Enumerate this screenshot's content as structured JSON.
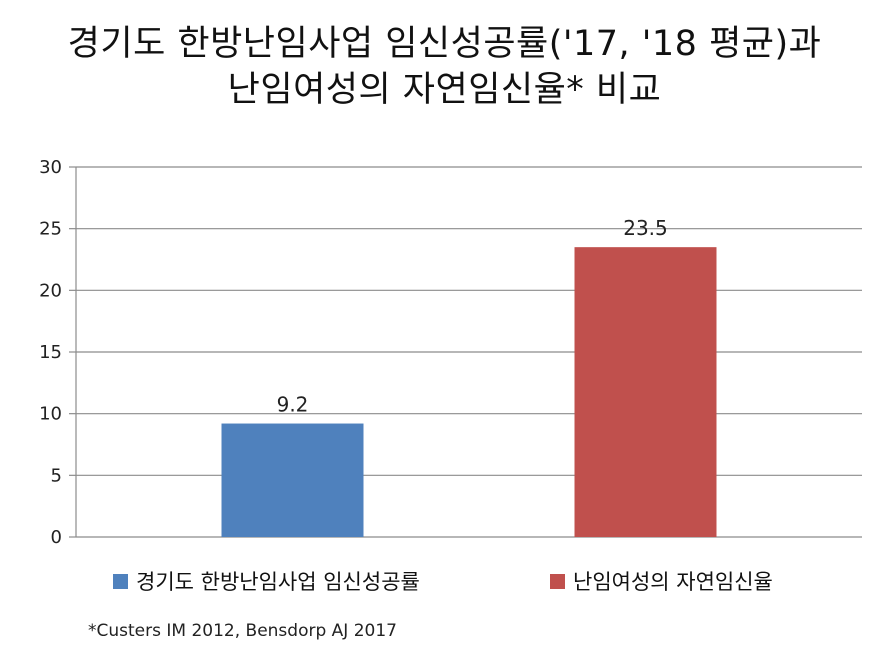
{
  "title": {
    "line1": "경기도 한방난임사업 임신성공률('17, '18 평균)과",
    "line2": "난임여성의 자연임신율* 비교"
  },
  "chart_data": {
    "type": "bar",
    "categories": [
      "경기도 한방난임사업 임신성공률",
      "난임여성의 자연임신율"
    ],
    "values": [
      9.2,
      23.5
    ],
    "data_labels": [
      "9.2",
      "23.5"
    ],
    "colors": [
      "#4F81BD",
      "#C0504D"
    ],
    "ylim": [
      0,
      30
    ],
    "yticks": [
      0,
      5,
      10,
      15,
      20,
      25,
      30
    ],
    "grid": true,
    "legend_placement": "bottom"
  },
  "legend": {
    "items": [
      {
        "label": "경기도 한방난임사업 임신성공률",
        "color": "#4F81BD"
      },
      {
        "label": "난임여성의 자연임신율",
        "color": "#C0504D"
      }
    ]
  },
  "footnote": "*Custers IM 2012, Bensdorp AJ 2017"
}
